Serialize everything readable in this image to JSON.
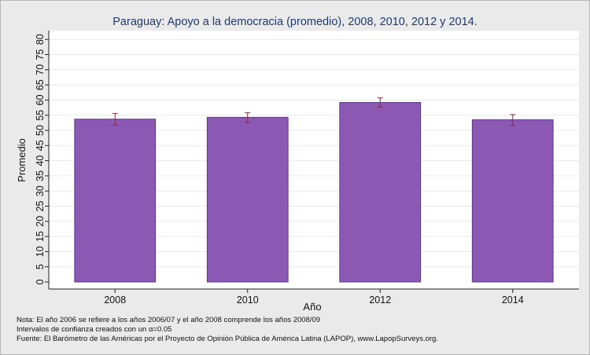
{
  "chart_data": {
    "type": "bar",
    "title": "Paraguay: Apoyo a la democracia (promedio), 2008, 2010, 2012 y 2014.",
    "xlabel": "Año",
    "ylabel": "Promedio",
    "categories": [
      "2008",
      "2010",
      "2012",
      "2014"
    ],
    "values": [
      53.7,
      54.3,
      59.2,
      53.5
    ],
    "ci_low": [
      51.8,
      52.6,
      57.7,
      51.6
    ],
    "ci_high": [
      55.6,
      55.8,
      60.7,
      55.2
    ],
    "ylim": [
      0,
      82
    ],
    "yticks": [
      "0",
      "5",
      "10",
      "15",
      "20",
      "25",
      "30",
      "35",
      "40",
      "45",
      "50",
      "55",
      "60",
      "65",
      "70",
      "75",
      "80"
    ],
    "grid": true,
    "legend": "none",
    "bar_color": "#8b59b3",
    "bar_edge": "#5d3a86",
    "errorbar_color": "#8a2b3e",
    "notes": [
      "Nota: El año 2006 se refiere a los años 2006/07 y el año 2008 comprende los años 2008/09",
      "Intervalos de confianza creados con un α=0.05",
      "Fuente: El Barómetro de las Américas por el Proyecto de Opinión Pública de América Latina (LAPOP), www.LapopSurveys.org."
    ]
  }
}
